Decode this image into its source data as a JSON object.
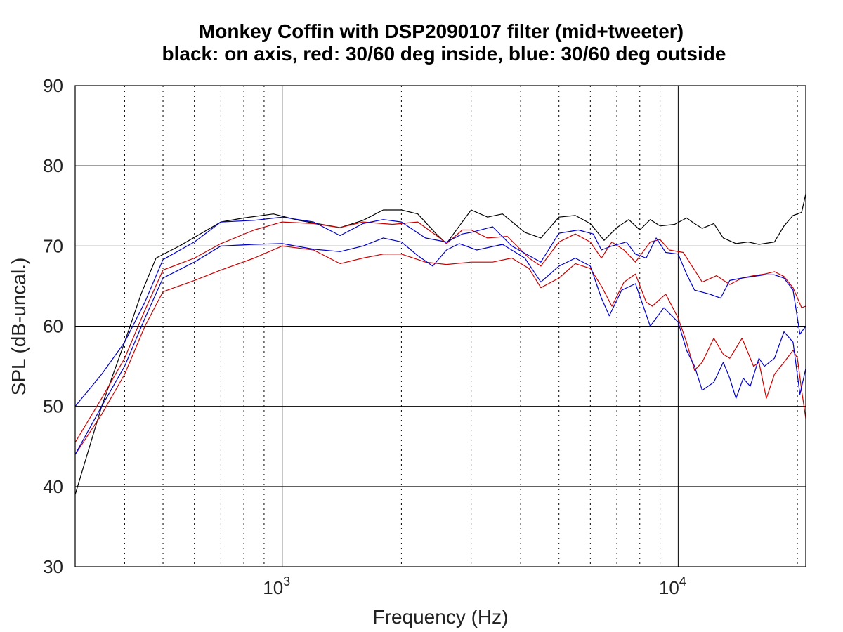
{
  "chart_data": {
    "type": "line",
    "title": "Monkey Coffin with DSP2090107 filter (mid+tweeter)",
    "subtitle": "black: on axis, red: 30/60 deg inside, blue: 30/60 deg outside",
    "xlabel": "Frequency (Hz)",
    "ylabel": "SPL (dB-uncal.)",
    "xscale": "log",
    "xlim": [
      300,
      21000
    ],
    "ylim": [
      30,
      90
    ],
    "yticks": [
      30,
      40,
      50,
      60,
      70,
      80,
      90
    ],
    "xticks_major": [
      {
        "value": 1000,
        "base": "10",
        "exp": "3"
      },
      {
        "value": 10000,
        "base": "10",
        "exp": "4"
      }
    ],
    "xticks_minor": [
      400,
      500,
      600,
      700,
      800,
      900,
      2000,
      3000,
      4000,
      5000,
      6000,
      7000,
      8000,
      9000,
      20000
    ],
    "grid": true,
    "legend": "none",
    "series": [
      {
        "color": "#000000",
        "points": [
          [
            300,
            39
          ],
          [
            350,
            50
          ],
          [
            400,
            58
          ],
          [
            440,
            64
          ],
          [
            480,
            68.5
          ],
          [
            550,
            70
          ],
          [
            700,
            73
          ],
          [
            800,
            73.5
          ],
          [
            950,
            74
          ],
          [
            1100,
            73.2
          ],
          [
            1400,
            72.3
          ],
          [
            1600,
            73.2
          ],
          [
            1800,
            74.5
          ],
          [
            2000,
            74.5
          ],
          [
            2200,
            74
          ],
          [
            2450,
            71.5
          ],
          [
            2600,
            70.3
          ],
          [
            2800,
            72.5
          ],
          [
            3000,
            74.5
          ],
          [
            3300,
            73.6
          ],
          [
            3600,
            74
          ],
          [
            4100,
            71.7
          ],
          [
            4500,
            71
          ],
          [
            5000,
            73.6
          ],
          [
            5500,
            73.8
          ],
          [
            6000,
            72.8
          ],
          [
            6500,
            70.7
          ],
          [
            7000,
            72.3
          ],
          [
            7500,
            73.3
          ],
          [
            8000,
            72
          ],
          [
            8500,
            73.3
          ],
          [
            9000,
            72.5
          ],
          [
            9800,
            72.7
          ],
          [
            10500,
            73.5
          ],
          [
            11000,
            72.8
          ],
          [
            11500,
            72.2
          ],
          [
            12300,
            72.8
          ],
          [
            13000,
            71
          ],
          [
            14000,
            70.3
          ],
          [
            15000,
            70.5
          ],
          [
            16000,
            70.2
          ],
          [
            17500,
            70.5
          ],
          [
            18500,
            72.5
          ],
          [
            19500,
            73.8
          ],
          [
            20500,
            74.2
          ],
          [
            21000,
            76.5
          ]
        ]
      },
      {
        "color": "#cc0000",
        "points": [
          [
            300,
            45.5
          ],
          [
            350,
            51
          ],
          [
            400,
            56
          ],
          [
            450,
            62
          ],
          [
            500,
            67
          ],
          [
            600,
            68.5
          ],
          [
            700,
            70.3
          ],
          [
            850,
            72
          ],
          [
            1000,
            73
          ],
          [
            1200,
            72.8
          ],
          [
            1400,
            72.3
          ],
          [
            1600,
            73
          ],
          [
            1900,
            72.7
          ],
          [
            2200,
            73
          ],
          [
            2500,
            71
          ],
          [
            2600,
            70.3
          ],
          [
            2850,
            72
          ],
          [
            3000,
            72
          ],
          [
            3300,
            71
          ],
          [
            3700,
            71.2
          ],
          [
            4200,
            68.5
          ],
          [
            4500,
            67.5
          ],
          [
            5000,
            70.5
          ],
          [
            5500,
            71.5
          ],
          [
            6000,
            70.5
          ],
          [
            6400,
            68.5
          ],
          [
            6800,
            70.5
          ],
          [
            7300,
            69.5
          ],
          [
            7800,
            68
          ],
          [
            8500,
            70.5
          ],
          [
            9000,
            70.8
          ],
          [
            9500,
            69.5
          ],
          [
            10300,
            69.2
          ],
          [
            11000,
            67
          ],
          [
            11500,
            65.5
          ],
          [
            12500,
            66.3
          ],
          [
            13500,
            65.2
          ],
          [
            14500,
            66
          ],
          [
            15500,
            66.3
          ],
          [
            16500,
            66.5
          ],
          [
            17500,
            66.8
          ],
          [
            18500,
            66.2
          ],
          [
            19500,
            64.8
          ],
          [
            20500,
            62.3
          ],
          [
            21000,
            62.5
          ]
        ]
      },
      {
        "color": "#cc0000",
        "points": [
          [
            300,
            44
          ],
          [
            350,
            49
          ],
          [
            400,
            54
          ],
          [
            450,
            60
          ],
          [
            500,
            64.3
          ],
          [
            600,
            65.7
          ],
          [
            700,
            67
          ],
          [
            850,
            68.5
          ],
          [
            1000,
            70
          ],
          [
            1200,
            69.5
          ],
          [
            1400,
            67.8
          ],
          [
            1600,
            68.5
          ],
          [
            1800,
            69
          ],
          [
            2000,
            69
          ],
          [
            2300,
            68
          ],
          [
            2600,
            67.7
          ],
          [
            3000,
            68
          ],
          [
            3400,
            68
          ],
          [
            3800,
            68.5
          ],
          [
            4200,
            67.2
          ],
          [
            4500,
            64.8
          ],
          [
            5000,
            66
          ],
          [
            5500,
            67.8
          ],
          [
            6000,
            67.2
          ],
          [
            6400,
            65
          ],
          [
            6800,
            62.5
          ],
          [
            7300,
            65.5
          ],
          [
            7800,
            66.5
          ],
          [
            8300,
            63
          ],
          [
            8600,
            62.5
          ],
          [
            9300,
            64
          ],
          [
            10000,
            61
          ],
          [
            10500,
            58
          ],
          [
            11000,
            54.5
          ],
          [
            11500,
            55.5
          ],
          [
            12300,
            58.5
          ],
          [
            13000,
            56.5
          ],
          [
            13500,
            56
          ],
          [
            14500,
            58.5
          ],
          [
            15500,
            55
          ],
          [
            16000,
            55.5
          ],
          [
            16700,
            51
          ],
          [
            17500,
            54
          ],
          [
            18500,
            55.5
          ],
          [
            19500,
            57
          ],
          [
            20000,
            56
          ],
          [
            20500,
            52
          ],
          [
            21000,
            48.5
          ]
        ]
      },
      {
        "color": "#0000cc",
        "points": [
          [
            300,
            50
          ],
          [
            350,
            54
          ],
          [
            400,
            58
          ],
          [
            450,
            63
          ],
          [
            500,
            68.3
          ],
          [
            600,
            70.5
          ],
          [
            700,
            73
          ],
          [
            850,
            73.2
          ],
          [
            1000,
            73.6
          ],
          [
            1200,
            73
          ],
          [
            1400,
            71.3
          ],
          [
            1600,
            72.8
          ],
          [
            1800,
            73.3
          ],
          [
            2000,
            73
          ],
          [
            2300,
            71
          ],
          [
            2600,
            70.5
          ],
          [
            2850,
            71.5
          ],
          [
            3000,
            71.7
          ],
          [
            3400,
            72.4
          ],
          [
            3800,
            70
          ],
          [
            4200,
            68.8
          ],
          [
            4500,
            68
          ],
          [
            5000,
            71.6
          ],
          [
            5600,
            72
          ],
          [
            6100,
            71.5
          ],
          [
            6400,
            69.5
          ],
          [
            6800,
            70
          ],
          [
            7400,
            70.5
          ],
          [
            7800,
            69
          ],
          [
            8300,
            68.5
          ],
          [
            8800,
            71
          ],
          [
            9300,
            69.2
          ],
          [
            10000,
            69
          ],
          [
            10500,
            66.5
          ],
          [
            11000,
            64.5
          ],
          [
            12000,
            64
          ],
          [
            12800,
            63.5
          ],
          [
            13500,
            65.7
          ],
          [
            14500,
            66
          ],
          [
            15500,
            66.2
          ],
          [
            16500,
            66.4
          ],
          [
            17500,
            66.4
          ],
          [
            18500,
            66
          ],
          [
            19500,
            64.5
          ],
          [
            20300,
            59
          ],
          [
            21000,
            60
          ]
        ]
      },
      {
        "color": "#0000cc",
        "points": [
          [
            300,
            44
          ],
          [
            350,
            50
          ],
          [
            400,
            55
          ],
          [
            450,
            61
          ],
          [
            500,
            66
          ],
          [
            600,
            68
          ],
          [
            700,
            70
          ],
          [
            850,
            70.2
          ],
          [
            1000,
            70.3
          ],
          [
            1200,
            69.6
          ],
          [
            1400,
            69.3
          ],
          [
            1600,
            70
          ],
          [
            1800,
            71
          ],
          [
            2000,
            70.5
          ],
          [
            2200,
            68.8
          ],
          [
            2400,
            67.5
          ],
          [
            2600,
            69.5
          ],
          [
            2800,
            70.3
          ],
          [
            3100,
            69.5
          ],
          [
            3600,
            70.2
          ],
          [
            4100,
            68.5
          ],
          [
            4500,
            65.5
          ],
          [
            5000,
            67.5
          ],
          [
            5500,
            68.5
          ],
          [
            6000,
            67.5
          ],
          [
            6400,
            63.5
          ],
          [
            6700,
            61.3
          ],
          [
            7200,
            64.5
          ],
          [
            7800,
            65.3
          ],
          [
            8500,
            60
          ],
          [
            9200,
            62.3
          ],
          [
            10000,
            60.5
          ],
          [
            10500,
            57
          ],
          [
            11000,
            55
          ],
          [
            11500,
            52
          ],
          [
            12300,
            53
          ],
          [
            13000,
            55.5
          ],
          [
            13500,
            53.5
          ],
          [
            14000,
            51
          ],
          [
            14600,
            53.5
          ],
          [
            15200,
            52.5
          ],
          [
            16000,
            56
          ],
          [
            16500,
            55
          ],
          [
            17500,
            56
          ],
          [
            18500,
            59.3
          ],
          [
            19500,
            58
          ],
          [
            20300,
            51.5
          ],
          [
            21000,
            54.7
          ]
        ]
      }
    ]
  }
}
